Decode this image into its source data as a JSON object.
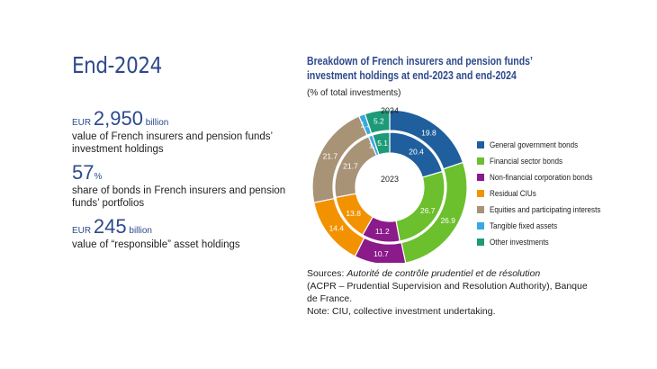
{
  "left": {
    "title": "End-2024",
    "stats": [
      {
        "pre": "EUR ",
        "big": "2,950",
        "unit": " billion",
        "desc": "value of French insurers and pension funds’ investment holdings"
      },
      {
        "pre": "",
        "big": "57",
        "unit": "%",
        "desc": "share of bonds in French insurers and pension funds’ portfolios"
      },
      {
        "pre": "EUR ",
        "big": "245",
        "unit": " billion",
        "desc": "value of “responsible” asset holdings"
      }
    ]
  },
  "chart_data": {
    "type": "pie",
    "title": "Breakdown of French insurers and pension funds’ investment holdings at end-2023 and end-2024",
    "subtitle": "(% of total investments)",
    "categories": [
      "General government bonds",
      "Financial sector bonds",
      "Non-financial corporation bonds",
      "Residual CIUs",
      "Equities and participating interests",
      "Tangible fixed assets",
      "Other investments"
    ],
    "colors": [
      "#1f5f9e",
      "#6cbf2d",
      "#8b1a8b",
      "#f39200",
      "#a89377",
      "#36a9e1",
      "#1d9a78"
    ],
    "series": [
      {
        "name": "2024",
        "values": [
          19.8,
          26.9,
          10.7,
          14.4,
          21.7,
          1.3,
          5.2
        ]
      },
      {
        "name": "2023",
        "values": [
          20.4,
          26.7,
          11.2,
          13.8,
          21.7,
          1.2,
          5.1
        ]
      }
    ]
  },
  "sources": {
    "prefix": "Sources: ",
    "italic": "Autorité de contrôle prudentiel et de résolution",
    "rest": "(ACPR – Prudential Supervision and Resolution Authority), Banque de France.",
    "note": "Note: CIU, collective investment undertaking."
  }
}
